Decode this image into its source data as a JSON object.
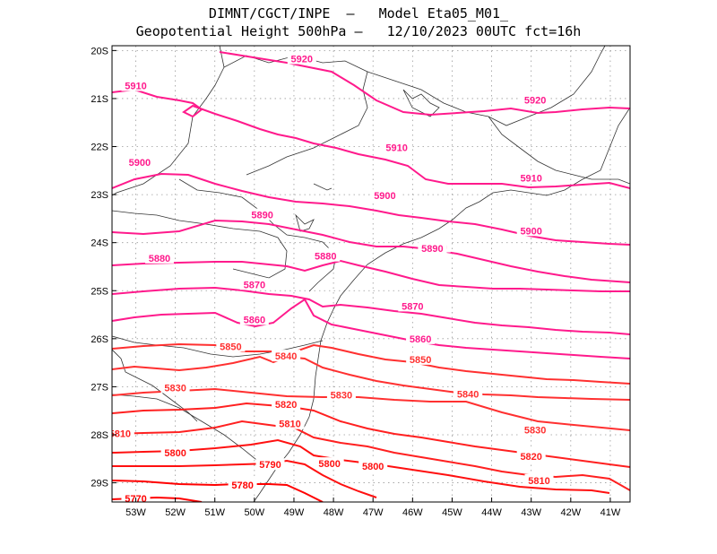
{
  "header": {
    "line1": "DIMNT/CGCT/INPE  –   Model Eta05_M01_",
    "line2": "Geopotential Height 500hPa –   12/10/2023 00UTC fct=16h"
  },
  "map": {
    "lon_range": [
      -53.6,
      -40.5
    ],
    "lat_range": [
      -29.4,
      -19.9
    ],
    "lat_labels": [
      "20S",
      "21S",
      "22S",
      "23S",
      "24S",
      "25S",
      "26S",
      "27S",
      "28S",
      "29S"
    ],
    "lon_labels": [
      "53W",
      "52W",
      "51W",
      "50W",
      "49W",
      "48W",
      "47W",
      "46W",
      "45W",
      "44W",
      "43W",
      "42W",
      "41W"
    ],
    "colors": {
      "frame": "#000000",
      "grid": "#9a9a9a",
      "coast": "#333333"
    },
    "contours": [
      {
        "value": "5920",
        "color": "#ff1a8c",
        "labels": [
          [
            -48.8,
            -20.17
          ],
          [
            -42.9,
            -21.03
          ]
        ]
      },
      {
        "value": "5910",
        "color": "#ff1a8c",
        "labels": [
          [
            -53.0,
            -20.73
          ],
          [
            -46.4,
            -22.02
          ],
          [
            -43.0,
            -22.65
          ]
        ]
      },
      {
        "value": "5900",
        "color": "#ff1a8c",
        "labels": [
          [
            -52.9,
            -22.33
          ],
          [
            -46.7,
            -23.02
          ],
          [
            -43.0,
            -23.75
          ]
        ]
      },
      {
        "value": "5890",
        "color": "#ff1a8c",
        "labels": [
          [
            -49.8,
            -23.42
          ],
          [
            -45.4,
            -24.09
          ]
        ]
      },
      {
        "value": "5880",
        "color": "#ff1a8c",
        "labels": [
          [
            -52.4,
            -24.32
          ],
          [
            -48.2,
            -24.24
          ]
        ]
      },
      {
        "value": "5870",
        "color": "#ff1a8c",
        "labels": [
          [
            -50.0,
            -24.87
          ],
          [
            -46.0,
            -25.32
          ]
        ]
      },
      {
        "value": "5860",
        "color": "#ff1a8c",
        "labels": [
          [
            -50.0,
            -25.6
          ],
          [
            -45.8,
            -25.97
          ]
        ]
      },
      {
        "value": "5850",
        "color": "#ff3030",
        "labels": [
          [
            -50.6,
            -26.16
          ],
          [
            -45.8,
            -26.43
          ]
        ]
      },
      {
        "value": "5840",
        "color": "#ff3030",
        "labels": [
          [
            -49.2,
            -26.36
          ],
          [
            -44.6,
            -27.12
          ]
        ]
      },
      {
        "value": "5830",
        "color": "#ff3030",
        "labels": [
          [
            -52.0,
            -27.02
          ],
          [
            -47.8,
            -27.17
          ]
        ]
      },
      {
        "value": "5820",
        "color": "#ff2020",
        "labels": [
          [
            -49.2,
            -27.37
          ],
          [
            -43.0,
            -28.45
          ]
        ]
      },
      {
        "value": "5810",
        "color": "#ff2020",
        "labels": [
          [
            -53.4,
            -27.97
          ],
          [
            -49.1,
            -27.77
          ]
        ]
      },
      {
        "value": "5800",
        "color": "#ff1010",
        "labels": [
          [
            -52.0,
            -28.37
          ],
          [
            -48.1,
            -28.6
          ]
        ]
      },
      {
        "value": "5790",
        "color": "#ff1010",
        "labels": [
          [
            -49.6,
            -28.62
          ]
        ]
      },
      {
        "value": "5780",
        "color": "#ff0000",
        "labels": [
          [
            -50.3,
            -29.05
          ]
        ]
      },
      {
        "value": "5770",
        "color": "#ff0000",
        "labels": [
          [
            -53.0,
            -29.33
          ]
        ]
      }
    ],
    "extra_labels": [
      {
        "value": "5830",
        "lonlat": [
          -44.6,
          -27.1
        ]
      },
      {
        "value": "5830",
        "lonlat": [
          -42.9,
          -27.9
        ]
      },
      {
        "value": "5840",
        "lonlat": [
          -44.6,
          -27.15
        ]
      },
      {
        "value": "5810",
        "lonlat": [
          -42.8,
          -28.95
        ]
      },
      {
        "value": "5800",
        "lonlat": [
          -47.0,
          -28.65
        ]
      },
      {
        "value": "5860",
        "lonlat": [
          -45.8,
          -26.0
        ]
      },
      {
        "value": "5880",
        "lonlat": [
          -48.2,
          -24.28
        ]
      },
      {
        "value": "5890",
        "lonlat": [
          -45.5,
          -24.12
        ]
      }
    ]
  }
}
